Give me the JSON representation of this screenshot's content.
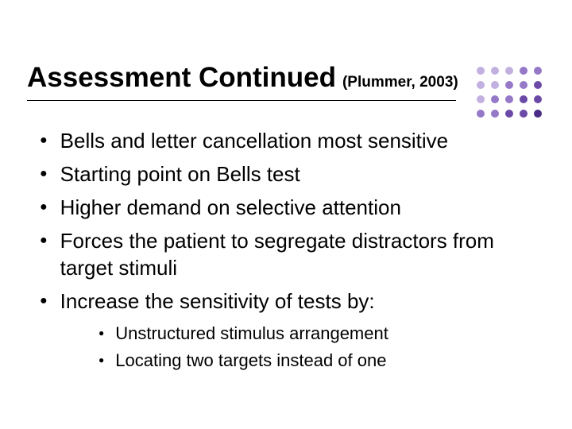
{
  "slide": {
    "title": "Assessment Continued",
    "citation": "(Plummer, 2003)",
    "title_fontsize": 35,
    "citation_fontsize": 19,
    "title_color": "#000000",
    "underline_color": "#000000",
    "background_color": "#ffffff",
    "bullets": {
      "level1_fontsize": 26,
      "level2_fontsize": 22,
      "bullet_color": "#000000",
      "text_color": "#000000",
      "items": [
        "Bells and letter cancellation most sensitive",
        "Starting point on Bells test",
        "Higher demand on selective attention",
        "Forces the patient to segregate distractors from target stimuli",
        "Increase the sensitivity of tests by:"
      ],
      "sub_items": [
        "Unstructured stimulus arrangement",
        "Locating two targets instead of one"
      ]
    },
    "dot_grid": {
      "rows": 4,
      "cols": 5,
      "dot_size": 10,
      "colors": [
        [
          "#c2b0e0",
          "#c2b0e0",
          "#c2b0e0",
          "#9678c8",
          "#9678c8"
        ],
        [
          "#c2b0e0",
          "#c2b0e0",
          "#9678c8",
          "#9678c8",
          "#6a4aa6"
        ],
        [
          "#c2b0e0",
          "#9678c8",
          "#9678c8",
          "#6a4aa6",
          "#6a4aa6"
        ],
        [
          "#9678c8",
          "#9678c8",
          "#6a4aa6",
          "#6a4aa6",
          "#4a2d86"
        ]
      ]
    }
  }
}
